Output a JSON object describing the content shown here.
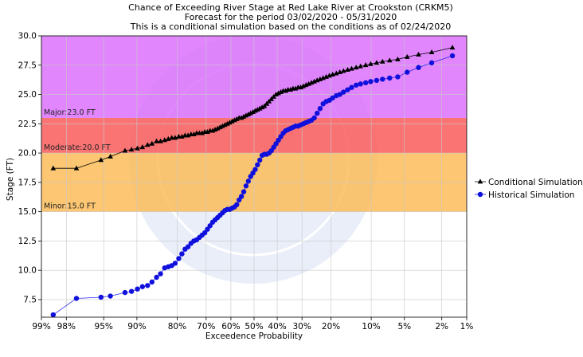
{
  "chart_data": {
    "type": "line",
    "title": "Chance of Exceeding River Stage at Red Lake River at Crookston (CRKM5)",
    "subtitle": "Forecast for the period 03/02/2020 - 05/31/2020",
    "subtitle2": "This is a conditional simulation based on the conditions as of 02/24/2020",
    "xlabel": "Exceedence Probability",
    "ylabel": "Stage (FT)",
    "ylim": [
      6.0,
      30.0
    ],
    "yticks": [
      7.5,
      10.0,
      12.5,
      15.0,
      17.5,
      20.0,
      22.5,
      25.0,
      27.5,
      30.0
    ],
    "ytick_labels": [
      "7.5",
      "10.0",
      "12.5",
      "15.0",
      "17.5",
      "20.0",
      "22.5",
      "25.0",
      "27.5",
      "30.0"
    ],
    "xticks": [
      99,
      98,
      95,
      90,
      80,
      70,
      60,
      50,
      40,
      30,
      20,
      10,
      5,
      2,
      1
    ],
    "xtick_labels": [
      "99%",
      "98%",
      "95%",
      "90%",
      "80%",
      "70%",
      "60%",
      "50%",
      "40%",
      "30%",
      "20%",
      "10%",
      "5%",
      "2%",
      "1%"
    ],
    "flood_categories": [
      {
        "name": "Minor",
        "label": "Minor:15.0 FT",
        "from": 15.0,
        "to": 20.0,
        "color": "#fbbc5a"
      },
      {
        "name": "Moderate",
        "label": "Moderate:20.0 FT",
        "from": 20.0,
        "to": 23.0,
        "color": "#fa5c5c"
      },
      {
        "name": "Major",
        "label": "Major:23.0 FT",
        "from": 23.0,
        "to": 30.0,
        "color": "#dc71fc"
      }
    ],
    "legend_position": "right",
    "series": [
      {
        "name": "Conditional Simulation",
        "color": "#000000",
        "marker": "triangle",
        "x": [
          98.6,
          97.4,
          95.3,
          94.2,
          92.1,
          91.0,
          89.9,
          88.9,
          87.8,
          86.8,
          85.7,
          84.7,
          83.6,
          82.6,
          81.6,
          80.6,
          79.5,
          78.5,
          77.5,
          76.5,
          75.5,
          74.5,
          73.5,
          72.5,
          71.5,
          70.5,
          69.5,
          68.5,
          67.5,
          66.5,
          65.5,
          64.5,
          63.5,
          62.5,
          61.5,
          60.5,
          59.5,
          58.5,
          57.5,
          56.5,
          55.5,
          54.5,
          53.5,
          52.5,
          51.5,
          50.5,
          49.5,
          48.5,
          47.5,
          46.5,
          45.5,
          44.5,
          43.5,
          42.5,
          41.5,
          40.5,
          39.5,
          38.5,
          37.5,
          36.5,
          35.5,
          34.5,
          33.5,
          32.5,
          31.5,
          30.5,
          29.5,
          28.5,
          27.5,
          26.5,
          25.5,
          24.5,
          23.5,
          22.5,
          21.5,
          20.5,
          19.5,
          18.4,
          17.4,
          16.4,
          15.3,
          14.3,
          13.2,
          12.2,
          11.1,
          10.1,
          9.0,
          8.0,
          6.9,
          5.8,
          4.7,
          3.6,
          2.6,
          1.5
        ],
        "y": [
          18.7,
          18.7,
          19.4,
          19.7,
          20.2,
          20.3,
          20.4,
          20.5,
          20.7,
          20.8,
          21.0,
          21.0,
          21.1,
          21.2,
          21.3,
          21.3,
          21.4,
          21.4,
          21.5,
          21.5,
          21.6,
          21.6,
          21.7,
          21.7,
          21.7,
          21.8,
          21.8,
          21.9,
          21.9,
          22.0,
          22.1,
          22.2,
          22.3,
          22.4,
          22.5,
          22.6,
          22.7,
          22.8,
          22.9,
          23.0,
          23.0,
          23.1,
          23.2,
          23.3,
          23.4,
          23.5,
          23.6,
          23.7,
          23.8,
          23.9,
          24.0,
          24.2,
          24.4,
          24.6,
          24.8,
          25.0,
          25.1,
          25.2,
          25.3,
          25.3,
          25.4,
          25.4,
          25.5,
          25.5,
          25.6,
          25.6,
          25.7,
          25.8,
          25.9,
          26.0,
          26.1,
          26.2,
          26.3,
          26.4,
          26.5,
          26.6,
          26.7,
          26.8,
          26.9,
          27.0,
          27.1,
          27.2,
          27.3,
          27.4,
          27.5,
          27.6,
          27.7,
          27.8,
          27.9,
          28.0,
          28.2,
          28.4,
          28.6,
          29.0
        ]
      },
      {
        "name": "Historical Simulation",
        "color": "#1010dd",
        "marker": "circle",
        "x": [
          98.6,
          97.4,
          95.3,
          94.2,
          92.1,
          91.0,
          89.9,
          88.9,
          87.8,
          86.8,
          85.7,
          84.7,
          83.6,
          82.6,
          81.6,
          80.6,
          79.5,
          78.5,
          77.5,
          76.5,
          75.5,
          74.5,
          73.5,
          72.5,
          71.5,
          70.5,
          69.5,
          68.5,
          67.5,
          66.5,
          65.5,
          64.5,
          63.5,
          62.5,
          61.5,
          60.5,
          59.5,
          58.5,
          57.5,
          56.5,
          55.5,
          54.5,
          53.5,
          52.5,
          51.5,
          50.5,
          49.5,
          48.5,
          47.5,
          46.5,
          45.5,
          44.5,
          43.5,
          42.5,
          41.5,
          40.5,
          39.5,
          38.5,
          37.5,
          36.5,
          35.5,
          34.5,
          33.5,
          32.5,
          31.5,
          30.5,
          29.5,
          28.5,
          27.5,
          26.5,
          25.5,
          24.5,
          23.5,
          22.5,
          21.5,
          20.5,
          19.5,
          18.4,
          17.4,
          16.4,
          15.3,
          14.3,
          13.2,
          12.2,
          11.1,
          10.1,
          9.0,
          8.0,
          6.9,
          5.8,
          4.7,
          3.6,
          2.6,
          1.5
        ],
        "y": [
          6.2,
          7.6,
          7.7,
          7.8,
          8.1,
          8.2,
          8.4,
          8.6,
          8.7,
          9.0,
          9.4,
          9.7,
          10.2,
          10.3,
          10.4,
          10.6,
          11.0,
          11.4,
          11.8,
          12.0,
          12.3,
          12.5,
          12.6,
          12.8,
          13.0,
          13.2,
          13.5,
          13.8,
          14.1,
          14.3,
          14.5,
          14.7,
          14.9,
          15.1,
          15.2,
          15.2,
          15.3,
          15.4,
          15.6,
          16.0,
          16.3,
          16.7,
          17.2,
          17.6,
          18.0,
          18.3,
          18.6,
          19.0,
          19.4,
          19.8,
          19.9,
          19.9,
          20.0,
          20.2,
          20.5,
          20.8,
          21.1,
          21.4,
          21.7,
          21.9,
          22.0,
          22.1,
          22.2,
          22.3,
          22.3,
          22.4,
          22.5,
          22.6,
          22.7,
          22.8,
          23.0,
          23.4,
          23.8,
          24.2,
          24.4,
          24.5,
          24.7,
          24.9,
          25.0,
          25.2,
          25.4,
          25.6,
          25.8,
          25.9,
          26.0,
          26.1,
          26.2,
          26.3,
          26.4,
          26.5,
          26.9,
          27.3,
          27.7,
          28.3
        ]
      }
    ]
  }
}
